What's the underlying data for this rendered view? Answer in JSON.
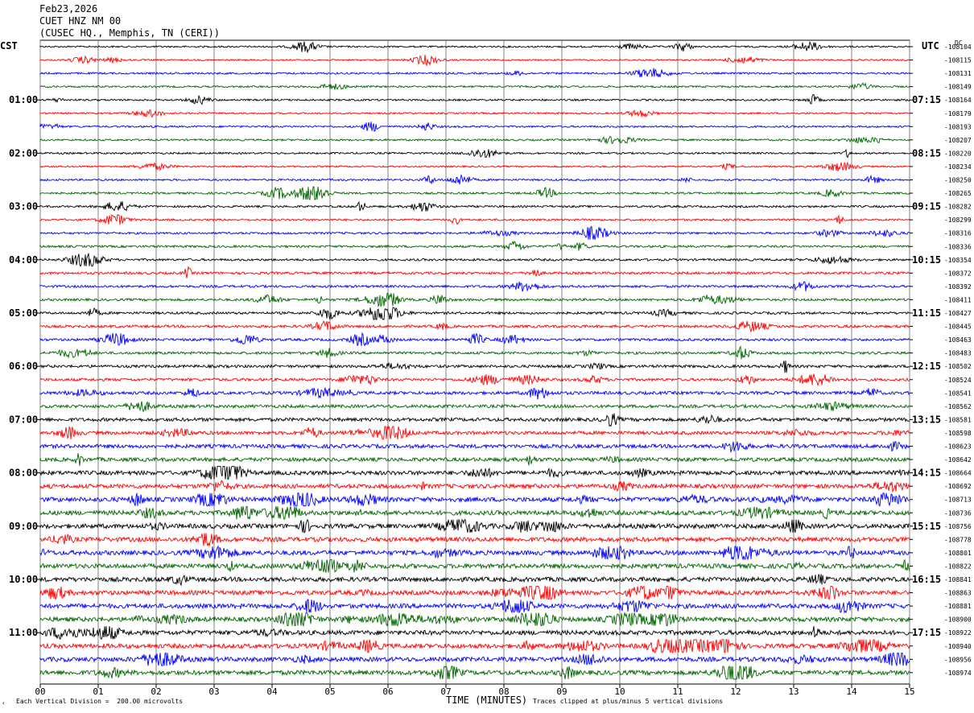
{
  "header": {
    "date": "Feb23,2026",
    "station": "CUET HNZ NM 00",
    "location": "(CUSEC HQ., Memphis, TN (CERI))"
  },
  "left_timezone": "CST",
  "right_timezone": "UTC",
  "dc_label": "DC",
  "footer": {
    "scale_note": "Each Vertical Division =  200.00 microvolts",
    "xlabel": "TIME (MINUTES)",
    "clip_note": "Traces clipped at plus/minus 5 vertical divisions",
    "corner_mark": "‹"
  },
  "colors": {
    "trace_cycle": [
      "#000000",
      "#ff0000",
      "#0000ff",
      "#006400"
    ],
    "grid": "#808080"
  },
  "chart_data": {
    "type": "line",
    "title": "CUET HNZ NM 00",
    "xlabel": "TIME (MINUTES)",
    "xlim": [
      0,
      15
    ],
    "x_ticks": [
      "00",
      "01",
      "02",
      "03",
      "04",
      "05",
      "06",
      "07",
      "08",
      "09",
      "10",
      "11",
      "12",
      "13",
      "14",
      "15"
    ],
    "left_hour_labels": [
      "01:00",
      "02:00",
      "03:00",
      "04:00",
      "05:00",
      "06:00",
      "07:00",
      "08:00",
      "09:00",
      "10:00",
      "11:00"
    ],
    "right_hour_labels": [
      "07:15",
      "08:15",
      "09:15",
      "10:15",
      "11:15",
      "12:15",
      "13:15",
      "14:15",
      "15:15",
      "16:15",
      "17:15"
    ],
    "rows_per_hour": 4,
    "row_count": 48,
    "dc_offsets": [
      "-108104",
      "-108115",
      "-108131",
      "-108149",
      "-108164",
      "-108179",
      "-108193",
      "-108207",
      "-108220",
      "-108234",
      "-108250",
      "-108265",
      "-108282",
      "-108299",
      "-108316",
      "-108336",
      "-108354",
      "-108372",
      "-108392",
      "-108411",
      "-108427",
      "-108445",
      "-108463",
      "-108483",
      "-108502",
      "-108524",
      "-108541",
      "-108562",
      "-108581",
      "-108598",
      "-108623",
      "-108642",
      "-108664",
      "-108692",
      "-108713",
      "-108736",
      "-108756",
      "-108778",
      "-108801",
      "-108822",
      "-108841",
      "-108863",
      "-108881",
      "-108900",
      "-108922",
      "-108940",
      "-108956",
      "-108974"
    ],
    "noise_level": [
      0.2,
      0.15,
      0.25,
      0.25,
      0.25,
      0.2,
      0.25,
      0.25,
      0.25,
      0.2,
      0.25,
      0.3,
      0.3,
      0.3,
      0.3,
      0.35,
      0.35,
      0.4,
      0.4,
      0.4,
      0.4,
      0.45,
      0.45,
      0.45,
      0.5,
      0.5,
      0.6,
      0.6,
      0.7,
      0.7,
      0.8,
      0.8,
      0.9,
      0.9,
      1.0,
      1.0,
      1.0,
      1.0,
      1.0,
      1.0,
      1.0,
      1.0,
      1.0,
      1.0,
      1.0,
      1.0,
      1.0,
      1.0
    ],
    "grid": true
  }
}
